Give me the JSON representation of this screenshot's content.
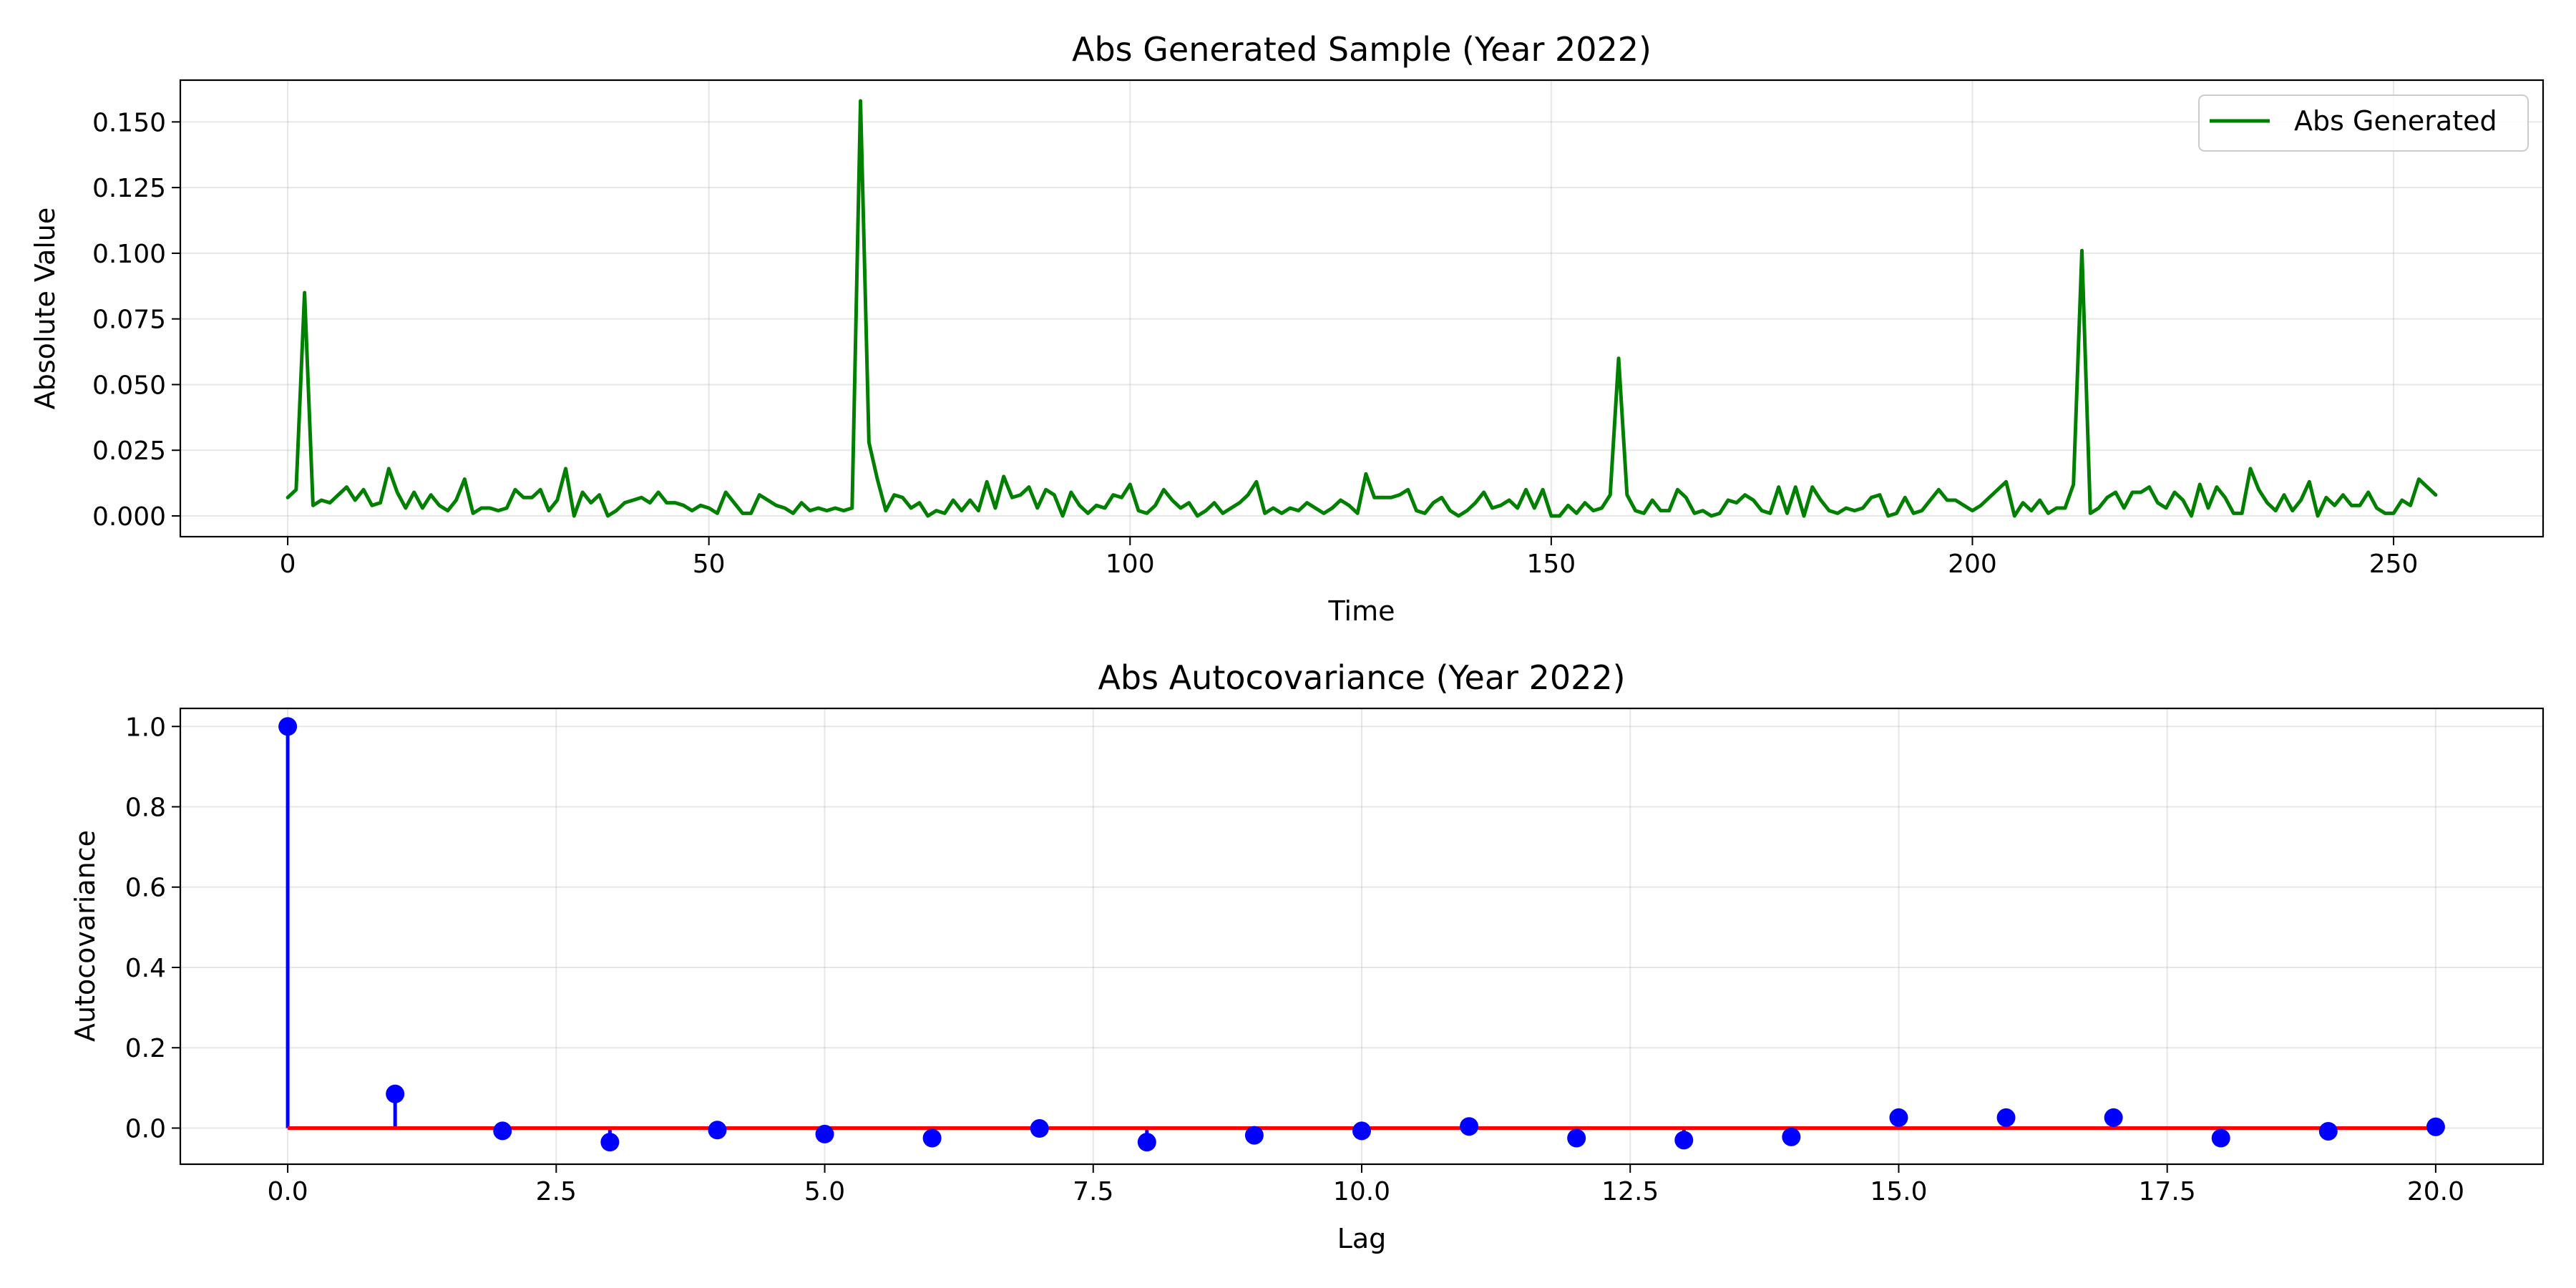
{
  "chart_data": [
    {
      "type": "line",
      "title": "Abs Generated Sample (Year 2022)",
      "xlabel": "Time",
      "ylabel": "Absolute Value",
      "xlim": [
        -12.75,
        267.75
      ],
      "ylim": [
        -0.0079,
        0.1659
      ],
      "x_ticks": [
        0,
        50,
        100,
        150,
        200,
        250
      ],
      "y_ticks": [
        0.0,
        0.025,
        0.05,
        0.075,
        0.1,
        0.125,
        0.15
      ],
      "x_tick_labels": [
        "0",
        "50",
        "100",
        "150",
        "200",
        "250"
      ],
      "y_tick_labels": [
        "0.000",
        "0.025",
        "0.050",
        "0.075",
        "0.100",
        "0.125",
        "0.150"
      ],
      "grid": true,
      "legend": {
        "position": "top-right",
        "entries": [
          "Abs Generated"
        ]
      },
      "series": [
        {
          "name": "Abs Generated",
          "color": "#008000",
          "x_start": 0,
          "x_step": 1,
          "values": [
            0.007,
            0.01,
            0.085,
            0.004,
            0.006,
            0.005,
            0.008,
            0.011,
            0.006,
            0.01,
            0.004,
            0.005,
            0.018,
            0.009,
            0.003,
            0.009,
            0.003,
            0.008,
            0.004,
            0.002,
            0.006,
            0.014,
            0.001,
            0.003,
            0.003,
            0.002,
            0.003,
            0.01,
            0.007,
            0.007,
            0.01,
            0.002,
            0.006,
            0.018,
            0.0,
            0.009,
            0.005,
            0.008,
            0.0,
            0.002,
            0.005,
            0.006,
            0.007,
            0.005,
            0.009,
            0.005,
            0.005,
            0.004,
            0.002,
            0.004,
            0.003,
            0.001,
            0.009,
            0.005,
            0.001,
            0.001,
            0.008,
            0.006,
            0.004,
            0.003,
            0.001,
            0.005,
            0.002,
            0.003,
            0.002,
            0.003,
            0.002,
            0.003,
            0.158,
            0.028,
            0.014,
            0.002,
            0.008,
            0.007,
            0.003,
            0.005,
            0.0,
            0.002,
            0.001,
            0.006,
            0.002,
            0.006,
            0.002,
            0.013,
            0.003,
            0.015,
            0.007,
            0.008,
            0.011,
            0.003,
            0.01,
            0.008,
            0.0,
            0.009,
            0.004,
            0.001,
            0.004,
            0.003,
            0.008,
            0.007,
            0.012,
            0.002,
            0.001,
            0.004,
            0.01,
            0.006,
            0.003,
            0.005,
            0.0,
            0.002,
            0.005,
            0.001,
            0.003,
            0.005,
            0.008,
            0.013,
            0.001,
            0.003,
            0.001,
            0.003,
            0.002,
            0.005,
            0.003,
            0.001,
            0.003,
            0.006,
            0.004,
            0.001,
            0.016,
            0.007,
            0.007,
            0.007,
            0.008,
            0.01,
            0.002,
            0.001,
            0.005,
            0.007,
            0.002,
            0.0,
            0.002,
            0.005,
            0.009,
            0.003,
            0.004,
            0.006,
            0.003,
            0.01,
            0.003,
            0.01,
            0.0,
            0.0,
            0.004,
            0.001,
            0.005,
            0.002,
            0.003,
            0.008,
            0.06,
            0.008,
            0.002,
            0.001,
            0.006,
            0.002,
            0.002,
            0.01,
            0.007,
            0.001,
            0.002,
            0.0,
            0.001,
            0.006,
            0.005,
            0.008,
            0.006,
            0.002,
            0.001,
            0.011,
            0.001,
            0.011,
            0.0,
            0.011,
            0.006,
            0.002,
            0.001,
            0.003,
            0.002,
            0.003,
            0.007,
            0.008,
            0.0,
            0.001,
            0.007,
            0.001,
            0.002,
            0.006,
            0.01,
            0.006,
            0.006,
            0.004,
            0.002,
            0.004,
            0.007,
            0.01,
            0.013,
            0.0,
            0.005,
            0.002,
            0.006,
            0.001,
            0.003,
            0.003,
            0.012,
            0.101,
            0.001,
            0.003,
            0.007,
            0.009,
            0.003,
            0.009,
            0.009,
            0.011,
            0.005,
            0.003,
            0.009,
            0.006,
            0.0,
            0.012,
            0.003,
            0.011,
            0.007,
            0.001,
            0.001,
            0.018,
            0.01,
            0.005,
            0.002,
            0.008,
            0.002,
            0.006,
            0.013,
            0.0,
            0.007,
            0.004,
            0.008,
            0.004,
            0.004,
            0.009,
            0.003,
            0.001,
            0.001,
            0.006,
            0.004,
            0.014,
            0.011,
            0.008
          ]
        }
      ]
    },
    {
      "type": "stem",
      "title": "Abs Autocovariance (Year 2022)",
      "xlabel": "Lag",
      "ylabel": "Autocovariance",
      "xlim": [
        -1.0,
        21.0
      ],
      "ylim": [
        -0.09,
        1.045
      ],
      "x_ticks": [
        0.0,
        2.5,
        5.0,
        7.5,
        10.0,
        12.5,
        15.0,
        17.5,
        20.0
      ],
      "y_ticks": [
        0.0,
        0.2,
        0.4,
        0.6,
        0.8,
        1.0
      ],
      "x_tick_labels": [
        "0.0",
        "2.5",
        "5.0",
        "7.5",
        "10.0",
        "12.5",
        "15.0",
        "17.5",
        "20.0"
      ],
      "y_tick_labels": [
        "0.0",
        "0.2",
        "0.4",
        "0.6",
        "0.8",
        "1.0"
      ],
      "grid": true,
      "baseline": {
        "value": 0.0,
        "color": "#ff0000"
      },
      "stem_color": "#0000ff",
      "marker_color": "#0000ff",
      "x": [
        0,
        1,
        2,
        3,
        4,
        5,
        6,
        7,
        8,
        9,
        10,
        11,
        12,
        13,
        14,
        15,
        16,
        17,
        18,
        19,
        20
      ],
      "values": [
        1.0,
        0.085,
        -0.007,
        -0.035,
        -0.005,
        -0.015,
        -0.025,
        -0.001,
        -0.035,
        -0.018,
        -0.007,
        0.004,
        -0.025,
        -0.03,
        -0.022,
        0.026,
        0.026,
        0.026,
        -0.025,
        -0.008,
        0.003
      ]
    }
  ]
}
